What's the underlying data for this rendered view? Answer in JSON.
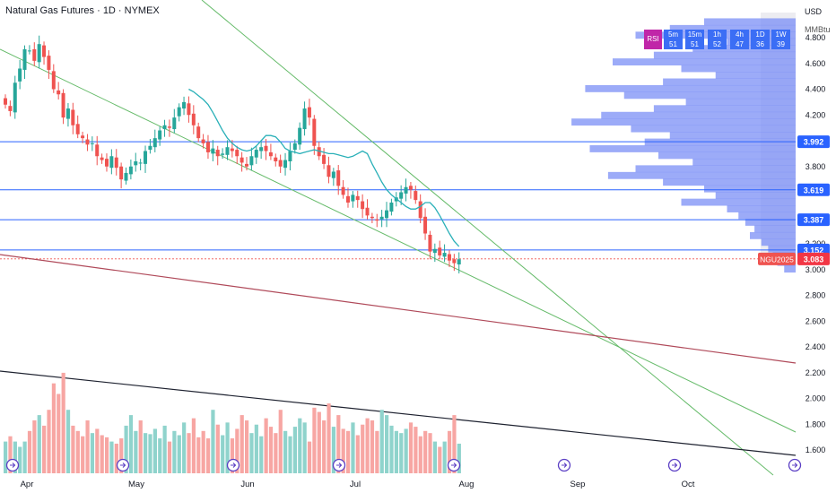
{
  "header": {
    "title": "Natural Gas Futures · 1D · NYMEX"
  },
  "currency": "USD",
  "unit": "MMBtu",
  "indicator_buttons": [
    {
      "label": "RSI",
      "sub": ""
    },
    {
      "label": "5m",
      "sub": "51"
    },
    {
      "label": "15m",
      "sub": "51"
    },
    {
      "label": "1h",
      "sub": "52"
    },
    {
      "label": "4h",
      "sub": "47"
    },
    {
      "label": "1D",
      "sub": "36"
    },
    {
      "label": "1W",
      "sub": "39"
    }
  ],
  "ticker_tag": "NGU2025",
  "price_tags": [
    {
      "label": "3.992",
      "value": 3.992,
      "color": "#2962ff"
    },
    {
      "label": "3.619",
      "value": 3.619,
      "color": "#2962ff"
    },
    {
      "label": "3.387",
      "value": 3.387,
      "color": "#2962ff"
    },
    {
      "label": "3.152",
      "value": 3.152,
      "color": "#2962ff"
    },
    {
      "label": "3.083",
      "value": 3.083,
      "color": "#f23645"
    }
  ],
  "colors": {
    "up": "#26a69a",
    "down": "#ef5350",
    "ma": "#2ab0b8",
    "level": "#2962ff",
    "trend": "#66bb6a",
    "red_trend": "#b04a5a",
    "black_trend": "#1e2230"
  },
  "chart_data": {
    "type": "candlestick",
    "title": "Natural Gas Futures · 1D · NYMEX",
    "y_ticks": [
      "4.800",
      "4.600",
      "4.400",
      "4.200",
      "4.000",
      "3.800",
      "3.600",
      "3.400",
      "3.200",
      "3.000",
      "2.800",
      "2.600",
      "2.400",
      "2.200",
      "2.000",
      "1.800",
      "1.600"
    ],
    "x_ticks": [
      "Apr",
      "May",
      "Jun",
      "Jul",
      "Aug",
      "Sep",
      "Oct"
    ],
    "ylim": [
      1.53,
      4.95
    ],
    "series": [
      {
        "name": "NGU2025",
        "closes": [
          4.28,
          4.23,
          4.45,
          4.56,
          4.71,
          4.7,
          4.62,
          4.75,
          4.65,
          4.55,
          4.4,
          4.36,
          4.18,
          4.25,
          4.12,
          4.05,
          4.02,
          3.97,
          3.98,
          3.88,
          3.85,
          3.8,
          3.88,
          3.79,
          3.7,
          3.75,
          3.8,
          3.84,
          3.83,
          3.92,
          3.96,
          4.02,
          4.08,
          4.12,
          4.1,
          4.18,
          4.26,
          4.3,
          4.2,
          4.12,
          4.02,
          3.98,
          3.91,
          3.94,
          3.88,
          3.9,
          3.95,
          3.92,
          3.88,
          3.83,
          3.8,
          3.88,
          3.93,
          3.95,
          3.92,
          3.88,
          3.84,
          3.8,
          3.85,
          3.92,
          3.98,
          4.1,
          4.25,
          4.18,
          3.96,
          3.88,
          3.82,
          3.72,
          3.76,
          3.65,
          3.58,
          3.52,
          3.58,
          3.54,
          3.47,
          3.42,
          3.4,
          3.38,
          3.41,
          3.46,
          3.52,
          3.56,
          3.6,
          3.64,
          3.62,
          3.54,
          3.4,
          3.28,
          3.14,
          3.16,
          3.11,
          3.13,
          3.07,
          3.05,
          3.08
        ]
      }
    ],
    "moving_average": [
      4.4,
      4.38,
      4.35,
      4.32,
      4.28,
      4.22,
      4.15,
      4.08,
      4.02,
      3.98,
      3.95,
      3.93,
      3.92,
      3.93,
      3.96,
      4.0,
      4.04,
      4.04,
      4.03,
      3.99,
      3.94,
      3.92,
      3.91,
      3.9,
      3.91,
      3.92,
      3.93,
      3.92,
      3.91,
      3.9,
      3.9,
      3.89,
      3.88,
      3.87,
      3.88,
      3.9,
      3.92,
      3.9,
      3.82,
      3.75,
      3.68,
      3.62,
      3.58,
      3.55,
      3.52,
      3.49,
      3.47,
      3.47,
      3.49,
      3.52,
      3.52,
      3.48,
      3.42,
      3.35,
      3.28,
      3.22,
      3.18
    ],
    "volume_relative": [
      0.3,
      0.35,
      0.3,
      0.25,
      0.3,
      0.4,
      0.5,
      0.55,
      0.45,
      0.6,
      0.85,
      0.75,
      0.95,
      0.6,
      0.45,
      0.4,
      0.35,
      0.5,
      0.38,
      0.42,
      0.36,
      0.34,
      0.3,
      0.28,
      0.33,
      0.45,
      0.55,
      0.4,
      0.5,
      0.38,
      0.37,
      0.42,
      0.33,
      0.45,
      0.3,
      0.4,
      0.36,
      0.48,
      0.38,
      0.52,
      0.34,
      0.4,
      0.33,
      0.6,
      0.46,
      0.36,
      0.48,
      0.33,
      0.42,
      0.55,
      0.5,
      0.38,
      0.46,
      0.35,
      0.52,
      0.44,
      0.38,
      0.6,
      0.4,
      0.35,
      0.44,
      0.52,
      0.48,
      0.3,
      0.62,
      0.58,
      0.5,
      0.66,
      0.44,
      0.55,
      0.42,
      0.4,
      0.48,
      0.36,
      0.46,
      0.52,
      0.5,
      0.4,
      0.6,
      0.55,
      0.45,
      0.4,
      0.38,
      0.42,
      0.48,
      0.44,
      0.35,
      0.4,
      0.38,
      0.3,
      0.25,
      0.3,
      0.4,
      0.55,
      0.28
    ],
    "volume_profile_relative": [
      0.4,
      0.55,
      0.7,
      0.3,
      0.45,
      0.62,
      0.8,
      0.5,
      0.35,
      0.58,
      0.92,
      0.75,
      0.48,
      0.62,
      0.85,
      0.98,
      0.72,
      0.55,
      0.66,
      0.9,
      0.6,
      0.45,
      0.7,
      0.82,
      0.58,
      0.4,
      0.35,
      0.5,
      0.3,
      0.25,
      0.22,
      0.18,
      0.2,
      0.15,
      0.12,
      0.1,
      0.08,
      0.05
    ],
    "horizontal_levels": [
      3.992,
      3.619,
      3.387,
      3.152
    ],
    "last_price": 3.083,
    "grid": false,
    "legend": "none"
  }
}
